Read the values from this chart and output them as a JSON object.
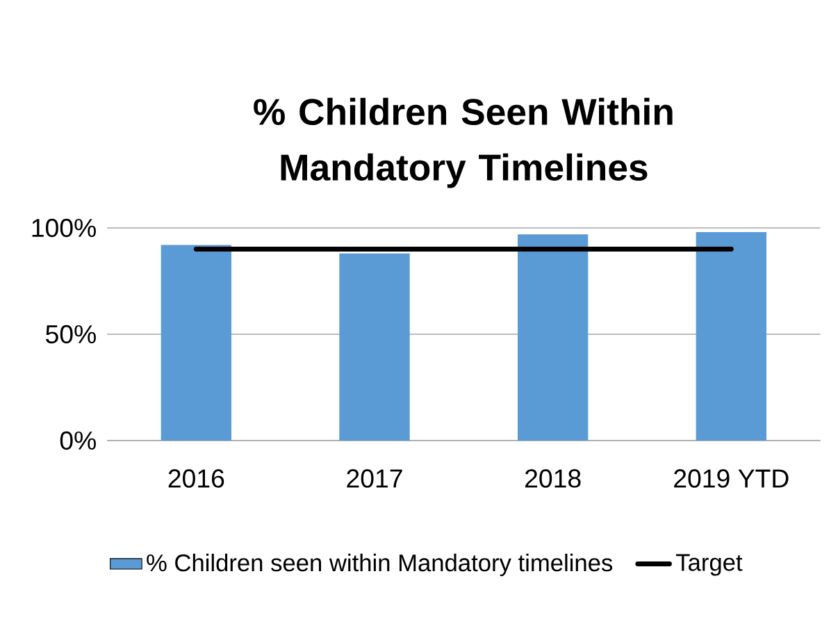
{
  "chart_data": {
    "type": "bar",
    "title": "% Children Seen Within Mandatory Timelines",
    "categories": [
      "2016",
      "2017",
      "2018",
      "2019 YTD"
    ],
    "series": [
      {
        "name": "% Children seen within Mandatory timelines",
        "color": "#5b9bd5",
        "values": [
          92,
          88,
          97,
          98
        ]
      },
      {
        "name": "Target",
        "type": "line",
        "color": "#000000",
        "values": [
          90,
          90,
          90,
          90
        ]
      }
    ],
    "ylim": [
      0,
      100
    ],
    "yticks": [
      {
        "value": 0,
        "label": "0%"
      },
      {
        "value": 50,
        "label": "50%"
      },
      {
        "value": 100,
        "label": "100%"
      }
    ],
    "grid": "y",
    "legend": "bottom"
  }
}
